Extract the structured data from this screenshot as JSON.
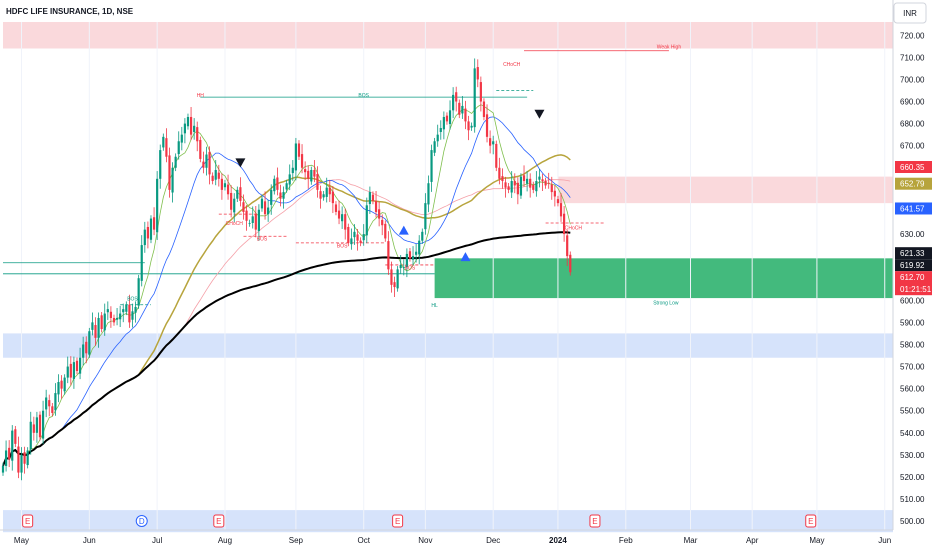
{
  "chart_data": {
    "type": "candlestick",
    "title": "HDFC LIFE INSURANCE, 1D, NSE",
    "currency": "INR",
    "interval": "1D",
    "exchange": "NSE",
    "ylim": [
      496,
      726
    ],
    "y_ticks": [
      500,
      510,
      520,
      530,
      540,
      550,
      560,
      570,
      580,
      590,
      600,
      630,
      670,
      680,
      690,
      700,
      710,
      720
    ],
    "x_ticks": [
      {
        "label": "May",
        "idx": 6
      },
      {
        "label": "Jun",
        "idx": 28
      },
      {
        "label": "Jul",
        "idx": 50
      },
      {
        "label": "Aug",
        "idx": 72
      },
      {
        "label": "Sep",
        "idx": 95
      },
      {
        "label": "Oct",
        "idx": 117
      },
      {
        "label": "Nov",
        "idx": 137
      },
      {
        "label": "Dec",
        "idx": 159
      },
      {
        "label": "2024",
        "idx": 180,
        "bold": true
      },
      {
        "label": "Feb",
        "idx": 202
      },
      {
        "label": "Mar",
        "idx": 223
      },
      {
        "label": "Apr",
        "idx": 243
      },
      {
        "label": "May",
        "idx": 264
      },
      {
        "label": "Jun",
        "idx": 286
      }
    ],
    "close_series": [
      525,
      532,
      528,
      541,
      535,
      522,
      530,
      526,
      532,
      545,
      540,
      547,
      538,
      550,
      556,
      552,
      549,
      558,
      563,
      560,
      565,
      570,
      565,
      572,
      568,
      574,
      580,
      576,
      586,
      590,
      583,
      592,
      587,
      594,
      596,
      592,
      590,
      592,
      594,
      596,
      598,
      590,
      595,
      597,
      610,
      625,
      632,
      628,
      637,
      632,
      655,
      668,
      674,
      665,
      650,
      660,
      665,
      672,
      675,
      680,
      683,
      675,
      679,
      672,
      664,
      660,
      666,
      657,
      654,
      659,
      655,
      650,
      653,
      648,
      641,
      646,
      650,
      645,
      640,
      636,
      635,
      638,
      632,
      641,
      646,
      639,
      642,
      650,
      655,
      650,
      646,
      649,
      653,
      657,
      660,
      671,
      665,
      660,
      658,
      655,
      659,
      656,
      650,
      646,
      648,
      651,
      648,
      644,
      640,
      637,
      639,
      632,
      626,
      628,
      631,
      627,
      626,
      630,
      643,
      649,
      645,
      640,
      637,
      634,
      628,
      614,
      607,
      606,
      614,
      616,
      615,
      621,
      619,
      620,
      622,
      627,
      631,
      644,
      653,
      668,
      672,
      675,
      678,
      683,
      681,
      686,
      693,
      690,
      684,
      688,
      681,
      677,
      679,
      705,
      700,
      690,
      683,
      674,
      670,
      672,
      660,
      655,
      654,
      651,
      650,
      654,
      652,
      648,
      656,
      654,
      655,
      651,
      650,
      654,
      656,
      654,
      652,
      653,
      649,
      647,
      644,
      638,
      630,
      620,
      612.7
    ],
    "price_labels": [
      {
        "value": "660.35",
        "price": 660.35,
        "color": "#f23645"
      },
      {
        "value": "652.79",
        "price": 652.79,
        "color": "#b7a43c"
      },
      {
        "value": "641.57",
        "price": 641.57,
        "color": "#2962ff"
      },
      {
        "value": "621.33",
        "price": 621.33,
        "color": "#131722"
      },
      {
        "value": "619.92",
        "price": 619.92,
        "color": "#131722"
      },
      {
        "value": "612.70",
        "price": 612.7,
        "color": "#f23645"
      }
    ],
    "countdown": "01:21:51",
    "zones": [
      {
        "label": "Weak High",
        "from": 714,
        "to": 726,
        "color": "#f9d5d8",
        "start_idx": 0
      },
      {
        "label": "",
        "from": 644,
        "to": 656,
        "color": "#f9d5d8",
        "start_idx": 180
      },
      {
        "label": "Strong Low",
        "from": 601,
        "to": 619,
        "color": "#2fb36f",
        "start_idx": 140
      },
      {
        "label": "",
        "from": 574,
        "to": 585,
        "color": "#d2e0fb",
        "start_idx": 0
      },
      {
        "label": "",
        "from": 495,
        "to": 505,
        "color": "#d2e0fb",
        "start_idx": 0
      }
    ],
    "annotations": [
      {
        "text": "HH",
        "idx": 64,
        "price": 692,
        "color": "#f23645"
      },
      {
        "text": "BOS",
        "idx": 117,
        "price": 692,
        "color": "#089981"
      },
      {
        "text": "CHoCH",
        "idx": 165,
        "price": 706,
        "color": "#f23645"
      },
      {
        "text": "Weak High",
        "idx": 216,
        "price": 714,
        "color": "#f23645"
      },
      {
        "text": "CHoCH",
        "idx": 75,
        "price": 634,
        "color": "#f23645"
      },
      {
        "text": "BOS",
        "idx": 84,
        "price": 627,
        "color": "#f23645"
      },
      {
        "text": "BOS",
        "idx": 110,
        "price": 624,
        "color": "#f23645"
      },
      {
        "text": "BOS",
        "idx": 132,
        "price": 614,
        "color": "#f23645"
      },
      {
        "text": "CHoCH",
        "idx": 185,
        "price": 632,
        "color": "#f23645"
      },
      {
        "text": "BOS",
        "idx": 42,
        "price": 600,
        "color": "#089981"
      },
      {
        "text": "HL",
        "idx": 140,
        "price": 597,
        "color": "#089981"
      },
      {
        "text": "Strong Low",
        "idx": 215,
        "price": 598,
        "color": "#089981"
      }
    ],
    "events": [
      {
        "label": "E",
        "idx": 8
      },
      {
        "label": "D",
        "idx": 45
      },
      {
        "label": "E",
        "idx": 70
      },
      {
        "label": "E",
        "idx": 128
      },
      {
        "label": "E",
        "idx": 192
      },
      {
        "label": "E",
        "idx": 262
      }
    ]
  }
}
